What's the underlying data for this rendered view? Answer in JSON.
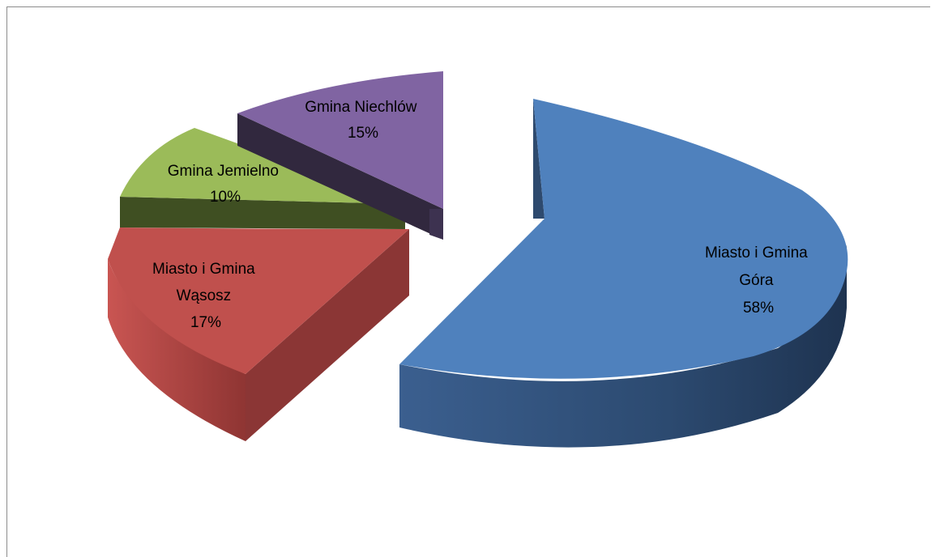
{
  "chart_data": {
    "type": "pie",
    "title": "",
    "slices": [
      {
        "name": "Miasto i Gmina Góra",
        "label_lines": [
          "Miasto i Gmina",
          "Góra",
          "58%"
        ],
        "value": 58,
        "color": "#4f81bd"
      },
      {
        "name": "Miasto i Gmina Wąsosz",
        "label_lines": [
          "Miasto i Gmina",
          "Wąsosz",
          "17%"
        ],
        "value": 17,
        "color": "#c0504d"
      },
      {
        "name": "Gmina Jemielno",
        "label_lines": [
          "Gmina Jemielno",
          "10%"
        ],
        "value": 10,
        "color": "#9bbb59"
      },
      {
        "name": "Gmina Niechlów",
        "label_lines": [
          "Gmina Niechlów",
          "15%"
        ],
        "value": 15,
        "color": "#8064a2"
      }
    ],
    "legend": "none",
    "style": "3d-exploded"
  }
}
